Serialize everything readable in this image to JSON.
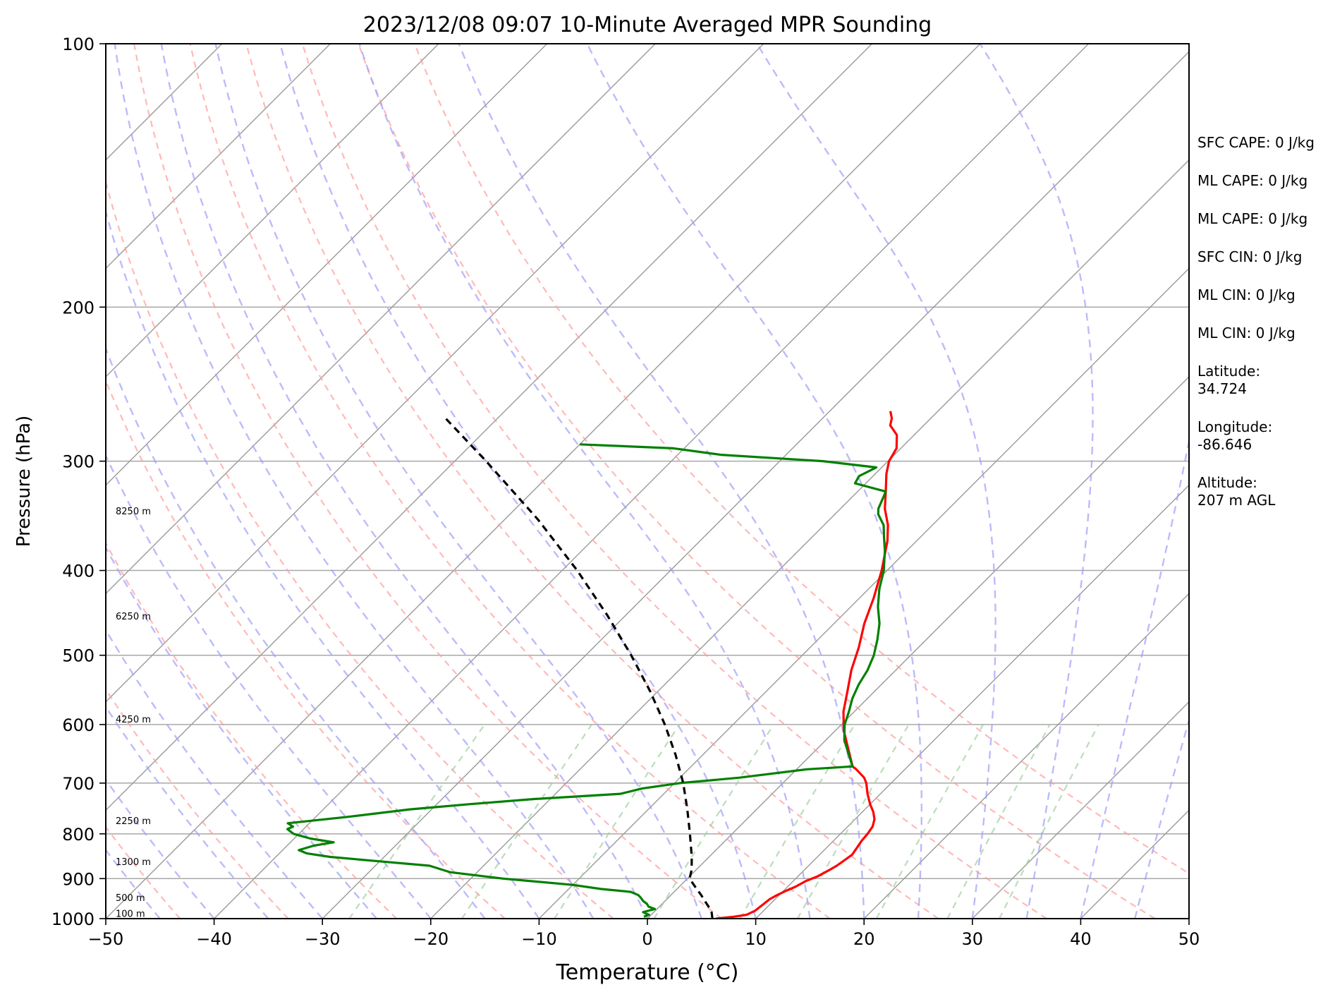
{
  "title": "2023/12/08 09:07 10-Minute Averaged MPR Sounding",
  "chart_data": {
    "type": "line",
    "subtype": "skew-T log-P diagram",
    "title": "2023/12/08 09:07 10-Minute Averaged MPR Sounding",
    "xlabel": "Temperature (°C)",
    "ylabel": "Pressure (hPa)",
    "xlim": [
      -50,
      50
    ],
    "ylim": [
      1000,
      100
    ],
    "y_scale": "log",
    "grid": true,
    "x_ticks": [
      -50,
      -40,
      -30,
      -20,
      -10,
      0,
      10,
      20,
      30,
      40,
      50
    ],
    "x_tick_labels": [
      "−50",
      "−40",
      "−30",
      "−20",
      "−10",
      "0",
      "10",
      "20",
      "30",
      "40",
      "50"
    ],
    "y_ticks": [
      1000,
      900,
      800,
      700,
      600,
      500,
      400,
      300,
      200,
      100
    ],
    "y_tick_labels": [
      "1000",
      "900",
      "800",
      "700",
      "600",
      "500",
      "400",
      "300",
      "200",
      "100"
    ],
    "series": [
      {
        "color": "#ff0000",
        "points": [
          [
            1000,
            6.3
          ],
          [
            995,
            7.8
          ],
          [
            990,
            8.8
          ],
          [
            980,
            9.2
          ],
          [
            970,
            9.3
          ],
          [
            960,
            9.4
          ],
          [
            950,
            9.5
          ],
          [
            940,
            9.8
          ],
          [
            930,
            10.2
          ],
          [
            920,
            10.7
          ],
          [
            905,
            11.2
          ],
          [
            895,
            11.8
          ],
          [
            880,
            12.3
          ],
          [
            870,
            12.6
          ],
          [
            858,
            12.8
          ],
          [
            845,
            13.0
          ],
          [
            830,
            12.8
          ],
          [
            815,
            12.6
          ],
          [
            800,
            12.5
          ],
          [
            785,
            12.3
          ],
          [
            770,
            11.8
          ],
          [
            755,
            11.0
          ],
          [
            740,
            10.0
          ],
          [
            720,
            8.8
          ],
          [
            700,
            7.7
          ],
          [
            690,
            7.0
          ],
          [
            675,
            5.5
          ],
          [
            670,
            4.9
          ],
          [
            640,
            2.9
          ],
          [
            610,
            0.8
          ],
          [
            580,
            -1.0
          ],
          [
            550,
            -2.5
          ],
          [
            520,
            -4.1
          ],
          [
            490,
            -5.5
          ],
          [
            460,
            -7.2
          ],
          [
            430,
            -8.7
          ],
          [
            400,
            -10.5
          ],
          [
            370,
            -12.7
          ],
          [
            355,
            -14.1
          ],
          [
            340,
            -15.9
          ],
          [
            325,
            -17.4
          ],
          [
            310,
            -19.0
          ],
          [
            300,
            -19.9
          ],
          [
            290,
            -20.4
          ],
          [
            280,
            -21.6
          ],
          [
            273,
            -23.1
          ],
          [
            268,
            -23.6
          ],
          [
            263,
            -24.4
          ]
        ]
      },
      {
        "color": "#008000",
        "points": [
          [
            995,
            -0.5
          ],
          [
            990,
            -0.2
          ],
          [
            983,
            -1.0
          ],
          [
            978,
            -0.5
          ],
          [
            975,
            -0.2
          ],
          [
            969,
            -1.0
          ],
          [
            962,
            -1.4
          ],
          [
            955,
            -2.0
          ],
          [
            947,
            -2.5
          ],
          [
            940,
            -3.0
          ],
          [
            932,
            -4.0
          ],
          [
            925,
            -7.0
          ],
          [
            915,
            -10.0
          ],
          [
            900,
            -17.0
          ],
          [
            885,
            -22.5
          ],
          [
            870,
            -25.0
          ],
          [
            860,
            -30.0
          ],
          [
            850,
            -35.0
          ],
          [
            842,
            -37.5
          ],
          [
            835,
            -38.5
          ],
          [
            825,
            -37.5
          ],
          [
            818,
            -36.0
          ],
          [
            810,
            -38.5
          ],
          [
            800,
            -40.5
          ],
          [
            790,
            -41.5
          ],
          [
            785,
            -41.2
          ],
          [
            778,
            -42.0
          ],
          [
            765,
            -37.0
          ],
          [
            750,
            -32.0
          ],
          [
            740,
            -27.0
          ],
          [
            730,
            -21.5
          ],
          [
            720,
            -14.0
          ],
          [
            710,
            -12.5
          ],
          [
            700,
            -9.5
          ],
          [
            690,
            -4.5
          ],
          [
            675,
            1.0
          ],
          [
            670,
            4.9
          ],
          [
            650,
            3.5
          ],
          [
            625,
            1.7
          ],
          [
            600,
            0.3
          ],
          [
            580,
            -0.5
          ],
          [
            560,
            -1.4
          ],
          [
            540,
            -2.1
          ],
          [
            520,
            -2.6
          ],
          [
            500,
            -3.4
          ],
          [
            480,
            -4.5
          ],
          [
            460,
            -5.8
          ],
          [
            440,
            -7.5
          ],
          [
            420,
            -9.0
          ],
          [
            400,
            -10.3
          ],
          [
            380,
            -12.0
          ],
          [
            365,
            -13.5
          ],
          [
            355,
            -14.5
          ],
          [
            345,
            -16.0
          ],
          [
            340,
            -16.5
          ],
          [
            325,
            -17.4
          ],
          [
            318,
            -21.0
          ],
          [
            312,
            -21.3
          ],
          [
            305,
            -20.5
          ],
          [
            300,
            -26.0
          ],
          [
            295,
            -36.0
          ],
          [
            290,
            -41.0
          ],
          [
            287,
            -50.0
          ]
        ]
      },
      {
        "color": "#000000",
        "dashed": true,
        "points": [
          [
            1000,
            6.0
          ],
          [
            980,
            5.2
          ],
          [
            960,
            4.0
          ],
          [
            940,
            2.8
          ],
          [
            920,
            1.5
          ],
          [
            900,
            0.2
          ],
          [
            880,
            -0.4
          ],
          [
            850,
            -1.6
          ],
          [
            800,
            -3.9
          ],
          [
            750,
            -6.4
          ],
          [
            700,
            -9.2
          ],
          [
            650,
            -12.5
          ],
          [
            600,
            -16.3
          ],
          [
            550,
            -20.7
          ],
          [
            500,
            -25.8
          ],
          [
            450,
            -31.7
          ],
          [
            400,
            -38.6
          ],
          [
            350,
            -46.9
          ],
          [
            300,
            -57.1
          ],
          [
            268,
            -64.8
          ]
        ]
      }
    ],
    "reference_lines": {
      "isotherms_gray": [
        -120,
        -110,
        -100,
        -90,
        -80,
        -70,
        -60,
        -50,
        -40,
        -30,
        -20,
        -10,
        0,
        10,
        20,
        30,
        40,
        50
      ],
      "dry_adiabats_red_theta_K": [
        230,
        240,
        250,
        260,
        270,
        280,
        290,
        300,
        310,
        320,
        330
      ],
      "moist_adiabats_blue_at_1000_C": [
        -45,
        -40,
        -35,
        -30,
        -25,
        -20,
        -15,
        -10,
        -5,
        0,
        5,
        10,
        15,
        20,
        25,
        30,
        35,
        40,
        45
      ],
      "mixing_ratio_green_g_per_kg": [
        0.4,
        1,
        2,
        4,
        7,
        10,
        16,
        24,
        32
      ]
    },
    "height_labels": [
      {
        "text": "8250 m",
        "p": 345
      },
      {
        "text": "6250 m",
        "p": 455
      },
      {
        "text": "4250 m",
        "p": 597
      },
      {
        "text": "2250 m",
        "p": 780
      },
      {
        "text": "1300 m",
        "p": 868
      },
      {
        "text": "500 m",
        "p": 955
      },
      {
        "text": "100 m",
        "p": 995
      }
    ],
    "annotations": [
      {
        "label": "SFC CAPE: 0 J/kg"
      },
      {
        "label": "ML CAPE: 0 J/kg"
      },
      {
        "label": "ML CAPE: 0 J/kg"
      },
      {
        "label": "SFC CIN: 0 J/kg"
      },
      {
        "label": "ML CIN: 0 J/kg"
      },
      {
        "label": "ML CIN: 0 J/kg"
      },
      {
        "label": "Latitude:",
        "value": "34.724"
      },
      {
        "label": "Longitude:",
        "value": "-86.646"
      },
      {
        "label": "Altitude:",
        "value": "207 m AGL"
      }
    ]
  }
}
